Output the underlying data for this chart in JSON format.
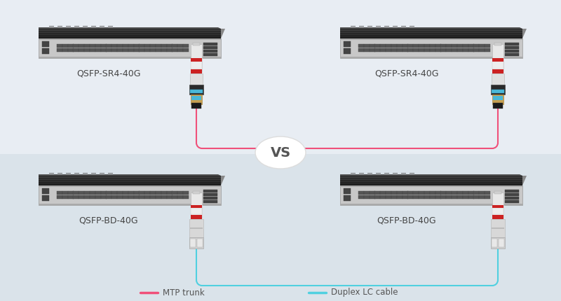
{
  "bg_color": "#e8edf2",
  "bg_bottom_color": "#dce5ec",
  "mtp_color": "#f0507a",
  "lc_color": "#50d0e0",
  "label_color": "#444444",
  "vs_text": "VS",
  "label_top_left": "QSFP-SR4-40G",
  "label_top_right": "QSFP-SR4-40G",
  "label_bot_left": "QSFP-BD-40G",
  "label_bot_right": "QSFP-BD-40G",
  "legend_mtp_label": "MTP trunk",
  "legend_lc_label": "Duplex LC cable",
  "switch_dark": "#1a1a1a",
  "switch_mid": "#3a3a3a",
  "switch_panel": "#b8b8b8",
  "switch_panel2": "#cccccc",
  "switch_edge": "#666666"
}
